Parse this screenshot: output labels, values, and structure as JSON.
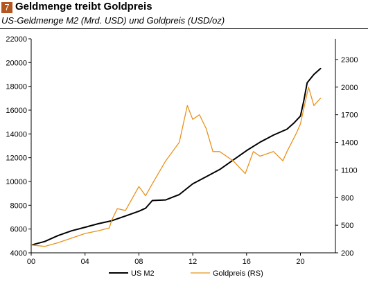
{
  "header": {
    "number": "7",
    "title": "Geldmenge treibt Goldpreis",
    "subtitle": "US-Geldmenge M2 (Mrd. USD) und Goldpreis (USD/oz)"
  },
  "colors": {
    "m2": "#000000",
    "gold": "#e8921a",
    "badge": "#b4561f"
  },
  "chart_data": {
    "type": "line",
    "x_ticks": [
      "00",
      "04",
      "08",
      "12",
      "16",
      "20"
    ],
    "y_left_ticks": [
      4000,
      6000,
      8000,
      10000,
      12000,
      14000,
      16000,
      18000,
      20000,
      22000
    ],
    "y_right_ticks": [
      200,
      500,
      800,
      1100,
      1400,
      1700,
      2000,
      2300
    ],
    "xlim": [
      2000,
      2022.6
    ],
    "ylim_left": [
      4000,
      22000
    ],
    "ylim_right": [
      200,
      2525
    ],
    "grid": false,
    "legend": "bottom",
    "series": [
      {
        "name": "US M2",
        "axis": "left",
        "x": [
          2000,
          2001,
          2002,
          2003,
          2004,
          2005,
          2006,
          2007,
          2008,
          2008.5,
          2009,
          2010,
          2011,
          2012,
          2013,
          2014,
          2015,
          2016,
          2017,
          2018,
          2019,
          2019.5,
          2020,
          2020.25,
          2020.5,
          2021,
          2021.5
        ],
        "values": [
          4650,
          4950,
          5450,
          5850,
          6150,
          6450,
          6700,
          7100,
          7500,
          7750,
          8400,
          8450,
          8900,
          9800,
          10400,
          11000,
          11800,
          12600,
          13300,
          13900,
          14400,
          14900,
          15500,
          16800,
          18300,
          19000,
          19500
        ]
      },
      {
        "name": "Goldpreis (RS)",
        "axis": "right",
        "x": [
          2000,
          2001,
          2002,
          2003,
          2004,
          2005,
          2005.8,
          2006,
          2006.4,
          2007,
          2008,
          2008.5,
          2009,
          2010,
          2011,
          2011.6,
          2012,
          2012.5,
          2013,
          2013.5,
          2014,
          2015,
          2015.9,
          2016.5,
          2017,
          2018,
          2018.7,
          2019,
          2019.7,
          2020,
          2020.6,
          2021,
          2021.5
        ],
        "values": [
          285,
          270,
          310,
          360,
          410,
          440,
          470,
          560,
          680,
          660,
          920,
          820,
          950,
          1200,
          1400,
          1800,
          1650,
          1700,
          1550,
          1300,
          1300,
          1200,
          1060,
          1300,
          1250,
          1300,
          1200,
          1300,
          1500,
          1600,
          2000,
          1800,
          1880
        ]
      }
    ]
  }
}
